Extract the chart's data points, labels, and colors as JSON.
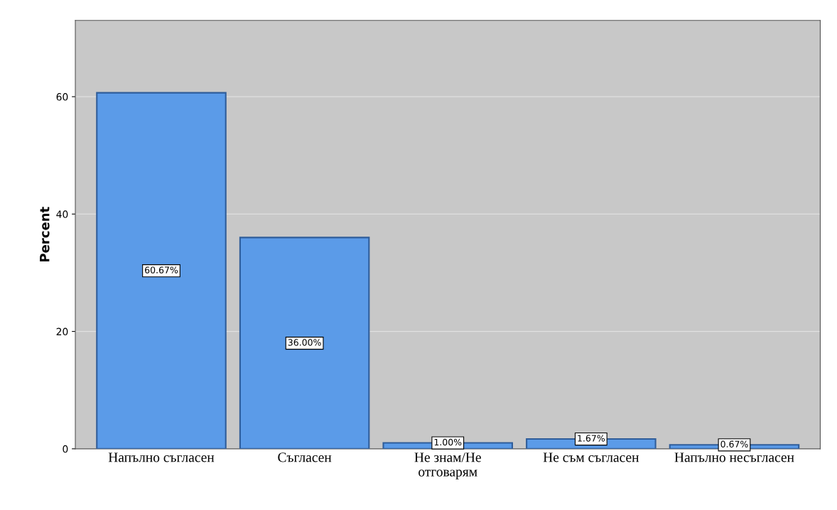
{
  "chart_data": {
    "type": "bar",
    "ylabel": "Percent",
    "categories": [
      "Напълно съгласен",
      "Съгласен",
      "Не знам/Не\nотговарям",
      "Не съм съгласен",
      "Напълно несъгласен"
    ],
    "values": [
      60.67,
      36.0,
      1.0,
      1.67,
      0.67
    ],
    "value_labels": [
      "60.67%",
      "36.00%",
      "1.00%",
      "1.67%",
      "0.67%"
    ],
    "color": "#5b9be8",
    "ylim": [
      0,
      73
    ],
    "yticks": [
      0,
      20,
      40,
      60
    ],
    "grid": "y"
  }
}
